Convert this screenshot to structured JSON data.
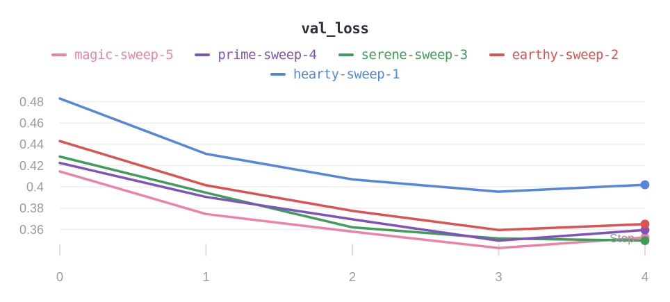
{
  "page": {
    "background": "#ffffff"
  },
  "header": {
    "title": "val_loss",
    "title_color": "#2b3038"
  },
  "axes": {
    "step_label": "Step",
    "step_label_color": "#97989c",
    "tick_label_color": "#9b9ca3",
    "grid_color": "#ededee",
    "tick_mark_color": "#dcdcdc"
  },
  "chart_data": {
    "type": "line",
    "title": "val_loss",
    "xlabel": "Step",
    "ylabel": "",
    "x": [
      0,
      1,
      2,
      3,
      4
    ],
    "x_ticks": [
      "0",
      "1",
      "2",
      "3",
      "4"
    ],
    "y_ticks": [
      0.36,
      0.38,
      0.4,
      0.42,
      0.44,
      0.46,
      0.48
    ],
    "ylim": [
      0.345,
      0.488
    ],
    "grid": "horizontal",
    "legend_position": "top",
    "end_markers": true,
    "series": [
      {
        "name": "magic-sweep-5",
        "color": "#ed82a8",
        "values": [
          0.4145,
          0.3745,
          0.358,
          0.3425,
          0.3525
        ]
      },
      {
        "name": "prime-sweep-4",
        "color": "#7e53ba",
        "values": [
          0.4225,
          0.3905,
          0.3695,
          0.3495,
          0.3595
        ]
      },
      {
        "name": "serene-sweep-3",
        "color": "#3f9d5a",
        "values": [
          0.4285,
          0.3945,
          0.362,
          0.3515,
          0.3495
        ]
      },
      {
        "name": "earthy-sweep-2",
        "color": "#dc5151",
        "values": [
          0.443,
          0.4015,
          0.3775,
          0.3595,
          0.365
        ]
      },
      {
        "name": "hearty-sweep-1",
        "color": "#5487d9",
        "values": [
          0.483,
          0.431,
          0.407,
          0.3955,
          0.402
        ]
      }
    ],
    "draw_order": [
      0,
      2,
      1,
      3,
      4
    ],
    "legend_rows": [
      [
        0,
        1,
        2,
        3
      ],
      [
        4
      ]
    ]
  }
}
